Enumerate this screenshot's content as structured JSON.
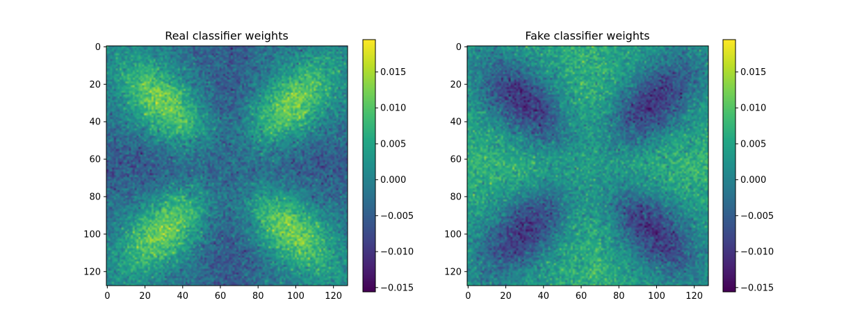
{
  "chart_data": [
    {
      "type": "heatmap",
      "title": "Real classifier weights",
      "colormap": "viridis",
      "grid_size": [
        128,
        128
      ],
      "xlim": [
        0,
        127
      ],
      "ylim": [
        127,
        0
      ],
      "xticks": [
        "0",
        "20",
        "40",
        "60",
        "80",
        "100",
        "120"
      ],
      "yticks": [
        "0",
        "20",
        "40",
        "60",
        "80",
        "100",
        "120"
      ],
      "colorbar": {
        "range": [
          -0.0156,
          0.0195
        ],
        "ticks": [
          "0.015",
          "0.010",
          "0.005",
          "0.000",
          "−0.005",
          "−0.010",
          "−0.015"
        ],
        "tick_values": [
          0.015,
          0.01,
          0.005,
          0.0,
          -0.005,
          -0.01,
          -0.015
        ]
      },
      "pattern": {
        "baseline": -0.002,
        "bright_blobs": [
          [
            30,
            30
          ],
          [
            98,
            30
          ],
          [
            30,
            98
          ],
          [
            98,
            98
          ]
        ],
        "blob_amplitude": 0.014,
        "dark_cross_center": [
          64,
          64
        ],
        "cross_amplitude": -0.007
      }
    },
    {
      "type": "heatmap",
      "title": "Fake classifier weights",
      "colormap": "viridis",
      "grid_size": [
        128,
        128
      ],
      "xlim": [
        0,
        127
      ],
      "ylim": [
        127,
        0
      ],
      "xticks": [
        "0",
        "20",
        "40",
        "60",
        "80",
        "100",
        "120"
      ],
      "yticks": [
        "0",
        "20",
        "40",
        "60",
        "80",
        "100",
        "120"
      ],
      "colorbar": {
        "range": [
          -0.0156,
          0.0195
        ],
        "ticks": [
          "0.015",
          "0.010",
          "0.005",
          "0.000",
          "−0.005",
          "−0.010",
          "−0.015"
        ],
        "tick_values": [
          0.015,
          0.01,
          0.005,
          0.0,
          -0.005,
          -0.01,
          -0.015
        ]
      },
      "pattern": {
        "baseline": 0.004,
        "dark_blobs": [
          [
            30,
            30
          ],
          [
            98,
            30
          ],
          [
            30,
            98
          ],
          [
            98,
            98
          ]
        ],
        "blob_amplitude": -0.014,
        "bright_cross_center": [
          64,
          64
        ],
        "cross_amplitude": 0.005
      }
    }
  ]
}
